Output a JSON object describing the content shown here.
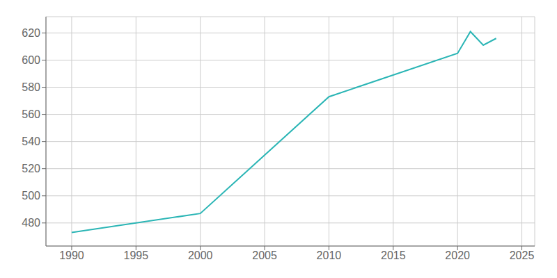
{
  "chart_data": {
    "type": "line",
    "x": [
      1990,
      2000,
      2010,
      2020,
      2021,
      2022,
      2023
    ],
    "values": [
      473,
      487,
      573,
      605,
      621,
      611,
      616
    ],
    "color": "#2ab5b5",
    "xlim": [
      1988,
      2026
    ],
    "ylim": [
      463,
      632
    ],
    "xticks": [
      1990,
      1995,
      2000,
      2005,
      2010,
      2015,
      2020,
      2025
    ],
    "yticks": [
      480,
      500,
      520,
      540,
      560,
      580,
      600,
      620
    ],
    "grid": true
  }
}
